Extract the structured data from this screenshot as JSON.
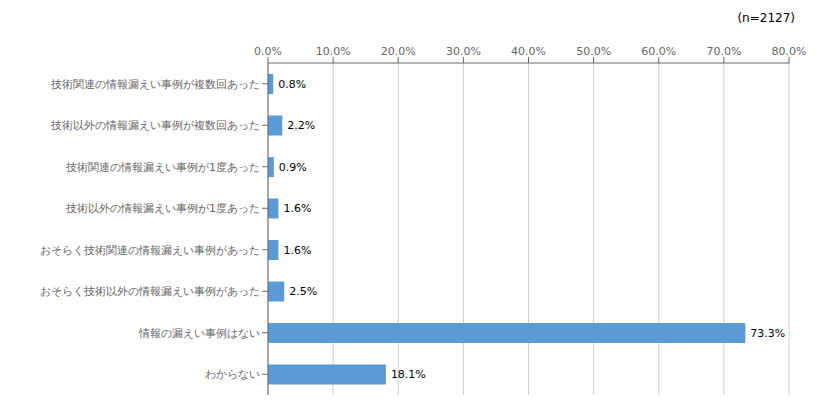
{
  "chart_data": {
    "type": "bar",
    "orientation": "horizontal",
    "annotation": "(n=2127)",
    "categories": [
      "技術関連の情報漏えい事例が複数回あった",
      "技術以外の情報漏えい事例が複数回あった",
      "技術関連の情報漏えい事例が1度あった",
      "技術以外の情報漏えい事例が1度あった",
      "おそらく技術関連の情報漏えい事例があった",
      "おそらく技術以外の情報漏えい事例があった",
      "情報の漏えい事例はない",
      "わからない"
    ],
    "values": [
      0.8,
      2.2,
      0.9,
      1.6,
      1.6,
      2.5,
      73.3,
      18.1
    ],
    "value_labels": [
      "0.8%",
      "2.2%",
      "0.9%",
      "1.6%",
      "1.6%",
      "2.5%",
      "73.3%",
      "18.1%"
    ],
    "data_labels": true,
    "color": "#5b9bd5",
    "xlim": [
      0,
      80
    ],
    "xticks": [
      {
        "value": 0,
        "label": "0.0%"
      },
      {
        "value": 10,
        "label": "10.0%"
      },
      {
        "value": 20,
        "label": "20.0%"
      },
      {
        "value": 30,
        "label": "30.0%"
      },
      {
        "value": 40,
        "label": "40.0%"
      },
      {
        "value": 50,
        "label": "50.0%"
      },
      {
        "value": 60,
        "label": "60.0%"
      },
      {
        "value": 70,
        "label": "70.0%"
      },
      {
        "value": 80,
        "label": "80.0%"
      }
    ],
    "grid": true
  }
}
